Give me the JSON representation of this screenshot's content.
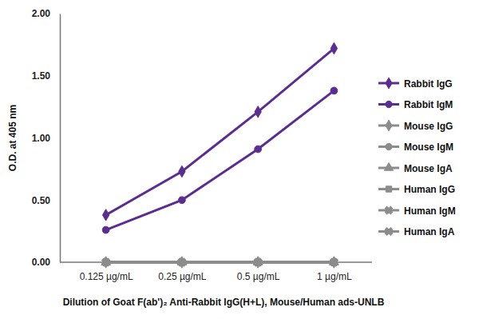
{
  "chart_data": {
    "type": "line",
    "x_label": "Dilution of Goat F(ab')₂ Anti-Rabbit IgG(H+L), Mouse/Human ads-UNLB",
    "y_label": "O.D. at 405 nm",
    "categories": [
      "0.125 µg/mL",
      "0.25 µg/mL",
      "0.5 µg/mL",
      "1 µg/mL"
    ],
    "ylim": [
      0,
      2
    ],
    "yticks": [
      {
        "value": 0,
        "label": "0.00"
      },
      {
        "value": 0.5,
        "label": "0.50"
      },
      {
        "value": 1,
        "label": "1.00"
      },
      {
        "value": 1.5,
        "label": "1.50"
      },
      {
        "value": 2,
        "label": "2.00"
      }
    ],
    "grid": false,
    "legend": "right",
    "series": [
      {
        "name": "Rabbit IgG",
        "color": "#5c2d91",
        "marker": "diamond",
        "values": [
          0.38,
          0.73,
          1.21,
          1.72
        ]
      },
      {
        "name": "Rabbit IgM",
        "color": "#5c2d91",
        "marker": "circle",
        "values": [
          0.26,
          0.5,
          0.91,
          1.38
        ]
      },
      {
        "name": "Mouse IgG",
        "color": "#8c8c8c",
        "marker": "diamond",
        "values": [
          0,
          0,
          0,
          0
        ]
      },
      {
        "name": "Mouse IgM",
        "color": "#8c8c8c",
        "marker": "circle",
        "values": [
          0,
          0,
          0,
          0
        ]
      },
      {
        "name": "Mouse IgA",
        "color": "#8c8c8c",
        "marker": "triangle",
        "values": [
          0,
          0,
          0,
          0
        ]
      },
      {
        "name": "Human IgG",
        "color": "#8c8c8c",
        "marker": "square",
        "values": [
          0,
          0,
          0,
          0
        ]
      },
      {
        "name": "Human IgM",
        "color": "#8c8c8c",
        "marker": "x",
        "values": [
          0,
          0,
          0,
          0
        ]
      },
      {
        "name": "Human IgA",
        "color": "#8c8c8c",
        "marker": "x",
        "values": [
          0,
          0,
          0,
          0
        ]
      }
    ]
  }
}
